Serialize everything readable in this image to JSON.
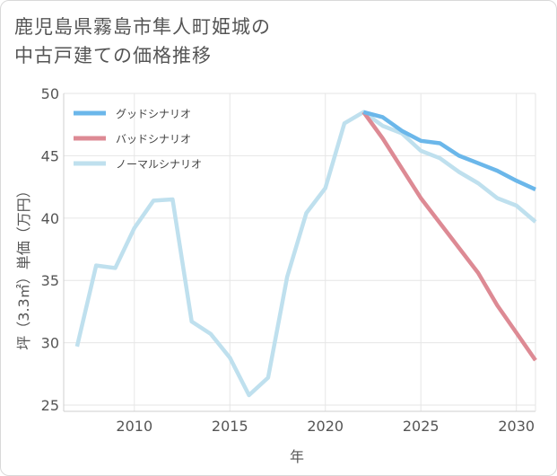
{
  "chart_data": {
    "type": "line",
    "title_line1": "鹿児島県霧島市隼人町姫城の",
    "title_line2": "中古戸建ての価格推移",
    "xlabel": "年",
    "ylabel": "坪（3.3㎡）単価（万円）",
    "xlim": [
      2006.3,
      2031
    ],
    "ylim": [
      24.5,
      50
    ],
    "x_ticks": [
      2010,
      2015,
      2020,
      2025,
      2030
    ],
    "y_ticks": [
      25,
      30,
      35,
      40,
      45,
      50
    ],
    "legend_position": "top-left",
    "series": [
      {
        "name": "グッドシナリオ",
        "color": "#6bb7ea",
        "x": [
          2022,
          2023,
          2024,
          2025,
          2026,
          2027,
          2028,
          2029,
          2030,
          2031
        ],
        "y": [
          48.5,
          48.1,
          47.0,
          46.2,
          46.0,
          45.0,
          44.4,
          43.8,
          43.0,
          42.3
        ]
      },
      {
        "name": "バッドシナリオ",
        "color": "#dd8a94",
        "x": [
          2022,
          2023,
          2024,
          2025,
          2026,
          2027,
          2028,
          2029,
          2030,
          2031
        ],
        "y": [
          48.5,
          46.4,
          44.0,
          41.6,
          39.6,
          37.6,
          35.6,
          33.0,
          30.8,
          28.6
        ]
      },
      {
        "name": "ノーマルシナリオ",
        "color": "#bfe0ee",
        "x": [
          2007,
          2008,
          2009,
          2010,
          2011,
          2012,
          2013,
          2014,
          2015,
          2016,
          2017,
          2018,
          2019,
          2020,
          2021,
          2022,
          2023,
          2024,
          2025,
          2026,
          2027,
          2028,
          2029,
          2030,
          2031
        ],
        "y": [
          29.7,
          36.2,
          36.0,
          39.2,
          41.4,
          41.5,
          31.7,
          30.7,
          28.8,
          25.8,
          27.2,
          35.3,
          40.4,
          42.4,
          47.6,
          48.5,
          47.4,
          46.8,
          45.4,
          44.8,
          43.7,
          42.8,
          41.6,
          41.0,
          39.7
        ]
      }
    ]
  }
}
